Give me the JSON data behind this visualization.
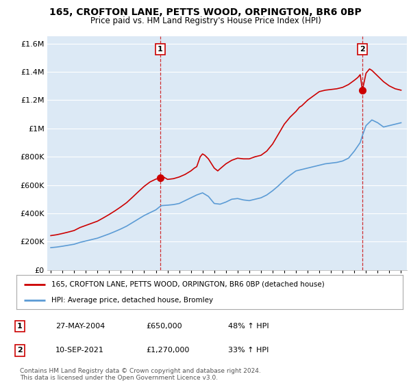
{
  "title_line1": "165, CROFTON LANE, PETTS WOOD, ORPINGTON, BR6 0BP",
  "title_line2": "Price paid vs. HM Land Registry's House Price Index (HPI)",
  "ylim": [
    0,
    1650000
  ],
  "yticks": [
    0,
    200000,
    400000,
    600000,
    800000,
    1000000,
    1200000,
    1400000,
    1600000
  ],
  "ytick_labels": [
    "£0",
    "£200K",
    "£400K",
    "£600K",
    "£800K",
    "£1M",
    "£1.2M",
    "£1.4M",
    "£1.6M"
  ],
  "line1_color": "#cc0000",
  "line2_color": "#5b9bd5",
  "plot_bg_color": "#dce9f5",
  "bg_color": "#ffffff",
  "grid_color": "#ffffff",
  "sale1_x": 2004.38,
  "sale1_y": 650000,
  "sale2_x": 2021.69,
  "sale2_y": 1270000,
  "legend_label1": "165, CROFTON LANE, PETTS WOOD, ORPINGTON, BR6 0BP (detached house)",
  "legend_label2": "HPI: Average price, detached house, Bromley",
  "table_row1": [
    "1",
    "27-MAY-2004",
    "£650,000",
    "48% ↑ HPI"
  ],
  "table_row2": [
    "2",
    "10-SEP-2021",
    "£1,270,000",
    "33% ↑ HPI"
  ],
  "footnote": "Contains HM Land Registry data © Crown copyright and database right 2024.\nThis data is licensed under the Open Government Licence v3.0.",
  "xlim_left": 1994.7,
  "xlim_right": 2025.5
}
